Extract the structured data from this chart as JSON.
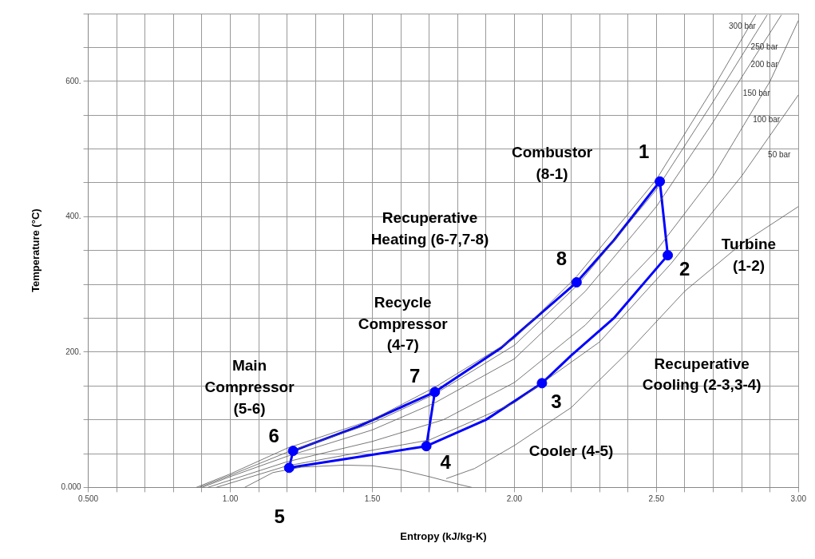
{
  "chart_data": {
    "type": "line",
    "xlabel": "Entropy (kJ/kg-K)",
    "ylabel": "Temperature (°C)",
    "xlim": [
      0.5,
      3.0
    ],
    "ylim": [
      0,
      700
    ],
    "xticks": [
      {
        "value": 0.5,
        "label": "0.500"
      },
      {
        "value": 0.6,
        "label": null
      },
      {
        "value": 0.7,
        "label": null
      },
      {
        "value": 0.8,
        "label": null
      },
      {
        "value": 0.9,
        "label": null
      },
      {
        "value": 1.0,
        "label": "1.00"
      },
      {
        "value": 1.1,
        "label": null
      },
      {
        "value": 1.2,
        "label": null
      },
      {
        "value": 1.3,
        "label": null
      },
      {
        "value": 1.4,
        "label": null
      },
      {
        "value": 1.5,
        "label": "1.50"
      },
      {
        "value": 1.6,
        "label": null
      },
      {
        "value": 1.7,
        "label": null
      },
      {
        "value": 1.8,
        "label": null
      },
      {
        "value": 1.9,
        "label": null
      },
      {
        "value": 2.0,
        "label": "2.00"
      },
      {
        "value": 2.1,
        "label": null
      },
      {
        "value": 2.2,
        "label": null
      },
      {
        "value": 2.3,
        "label": null
      },
      {
        "value": 2.4,
        "label": null
      },
      {
        "value": 2.5,
        "label": "2.50"
      },
      {
        "value": 2.6,
        "label": null
      },
      {
        "value": 2.7,
        "label": null
      },
      {
        "value": 2.8,
        "label": null
      },
      {
        "value": 2.9,
        "label": null
      },
      {
        "value": 3.0,
        "label": "3.00"
      }
    ],
    "yticks": [
      {
        "value": 0,
        "label": "0.000"
      },
      {
        "value": 50,
        "label": null
      },
      {
        "value": 100,
        "label": null
      },
      {
        "value": 150,
        "label": null
      },
      {
        "value": 200,
        "label": "200."
      },
      {
        "value": 250,
        "label": null
      },
      {
        "value": 300,
        "label": null
      },
      {
        "value": 350,
        "label": null
      },
      {
        "value": 400,
        "label": "400."
      },
      {
        "value": 450,
        "label": null
      },
      {
        "value": 500,
        "label": null
      },
      {
        "value": 550,
        "label": null
      },
      {
        "value": 600,
        "label": "600."
      },
      {
        "value": 650,
        "label": null
      },
      {
        "value": 700,
        "label": null
      }
    ],
    "grid": true,
    "legend": false,
    "series": [
      {
        "color": "#555555",
        "x": [
          0.88,
          1.0,
          1.2,
          1.5,
          1.72,
          2.0,
          2.22,
          2.5,
          2.7,
          2.85
        ],
        "values": [
          0,
          20,
          58,
          100,
          148,
          220,
          312,
          455,
          590,
          698
        ]
      },
      {
        "color": "#555555",
        "x": [
          0.89,
          1.0,
          1.2,
          1.5,
          1.72,
          2.0,
          2.22,
          2.5,
          2.7,
          2.89
        ],
        "values": [
          0,
          18,
          52,
          95,
          138,
          210,
          298,
          440,
          570,
          698
        ]
      },
      {
        "color": "#555555",
        "x": [
          0.9,
          1.0,
          1.2,
          1.5,
          1.72,
          2.0,
          2.25,
          2.5,
          2.7,
          2.94
        ],
        "values": [
          0,
          16,
          46,
          85,
          125,
          190,
          290,
          415,
          540,
          698
        ]
      },
      {
        "color": "#555555",
        "x": [
          0.92,
          1.2,
          1.5,
          1.75,
          2.0,
          2.25,
          2.5,
          2.7,
          2.9,
          3.0
        ],
        "values": [
          0,
          38,
          68,
          100,
          155,
          240,
          350,
          460,
          600,
          690
        ]
      },
      {
        "color": "#555555",
        "x": [
          0.95,
          1.2,
          1.5,
          1.7,
          2.0,
          2.3,
          2.55,
          2.8,
          3.0
        ],
        "values": [
          0,
          32,
          55,
          70,
          125,
          215,
          330,
          460,
          580
        ]
      },
      {
        "color": "#555555",
        "x": [
          1.76,
          1.86,
          2.0,
          2.2,
          2.4,
          2.6,
          2.8,
          3.0
        ],
        "values": [
          13,
          28,
          62,
          118,
          200,
          290,
          360,
          415
        ]
      },
      {
        "color": "#555555",
        "x": [
          1.05,
          1.15,
          1.25,
          1.4,
          1.5,
          1.6,
          1.7,
          1.8,
          1.85
        ],
        "values": [
          0,
          22,
          30,
          33,
          32,
          26,
          16,
          5,
          0
        ]
      },
      {
        "color": "#0000ff",
        "x": [
          1.207,
          1.221,
          1.45,
          1.72,
          1.95,
          2.219,
          2.35,
          2.512,
          2.54
        ],
        "values": [
          29,
          54,
          90,
          141,
          205,
          303,
          365,
          452,
          343
        ]
      },
      {
        "color": "#0000ff",
        "x": [
          1.207,
          1.45,
          1.69,
          1.9,
          2.097,
          2.2,
          2.35,
          2.54
        ],
        "values": [
          29,
          45,
          61,
          100,
          154,
          195,
          250,
          343
        ]
      },
      {
        "color": "#0000ff",
        "x": [
          1.69,
          1.72
        ],
        "values": [
          61,
          141
        ]
      },
      {
        "type": "scatter",
        "color": "#0000ff",
        "x": [
          1.207,
          1.221,
          1.69,
          1.72,
          2.097,
          2.219,
          2.512,
          2.54
        ],
        "values": [
          29,
          54,
          61,
          141,
          154,
          303,
          452,
          343
        ]
      }
    ],
    "annotations": [
      "300 bar",
      "250 bar",
      "200 bar",
      "150 bar",
      "100 bar",
      "50 bar",
      "Combustor\n(8-1)",
      "Recuperative\nHeating (6-7,7-8)",
      "Recycle\nCompressor\n(4-7)",
      "Main\nCompressor\n(5-6)",
      "Turbine\n(1-2)",
      "Recuperative\nCooling (2-3,3-4)",
      "Cooler (4-5)",
      {
        "text": "1",
        "x": 2.512,
        "y": 452
      },
      {
        "text": "2",
        "x": 2.54,
        "y": 343
      },
      {
        "text": "3",
        "x": 2.097,
        "y": 154
      },
      {
        "text": "4",
        "x": 1.69,
        "y": 61
      },
      {
        "text": "5",
        "x": 1.207,
        "y": 29
      },
      {
        "text": "6",
        "x": 1.221,
        "y": 54
      },
      {
        "text": "7",
        "x": 1.72,
        "y": 141
      },
      {
        "text": "8",
        "x": 2.219,
        "y": 303
      }
    ]
  }
}
